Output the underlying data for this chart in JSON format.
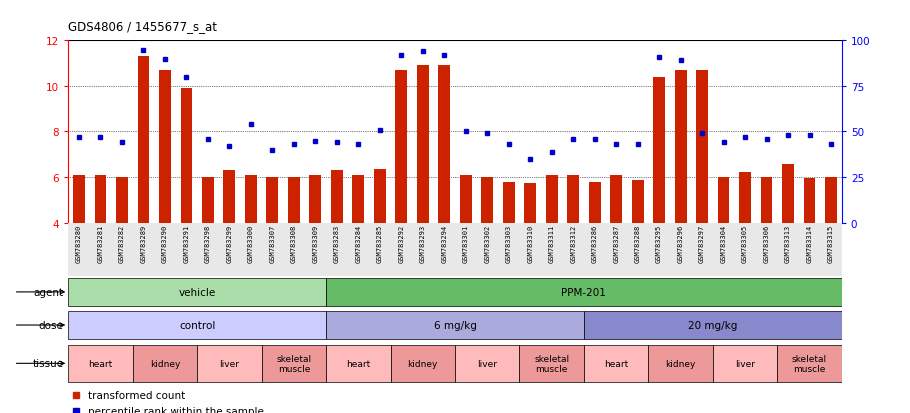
{
  "title": "GDS4806 / 1455677_s_at",
  "samples": [
    "GSM783280",
    "GSM783281",
    "GSM783282",
    "GSM783289",
    "GSM783290",
    "GSM783291",
    "GSM783298",
    "GSM783299",
    "GSM783300",
    "GSM783307",
    "GSM783308",
    "GSM783309",
    "GSM783283",
    "GSM783284",
    "GSM783285",
    "GSM783292",
    "GSM783293",
    "GSM783294",
    "GSM783301",
    "GSM783302",
    "GSM783303",
    "GSM783310",
    "GSM783311",
    "GSM783312",
    "GSM783286",
    "GSM783287",
    "GSM783288",
    "GSM783295",
    "GSM783296",
    "GSM783297",
    "GSM783304",
    "GSM783305",
    "GSM783306",
    "GSM783313",
    "GSM783314",
    "GSM783315"
  ],
  "bar_values": [
    6.1,
    6.1,
    6.0,
    11.3,
    10.7,
    9.9,
    6.0,
    6.3,
    6.1,
    6.0,
    6.0,
    6.1,
    6.3,
    6.1,
    6.35,
    10.7,
    10.9,
    10.9,
    6.1,
    6.0,
    5.8,
    5.75,
    6.1,
    6.1,
    5.8,
    6.1,
    5.85,
    10.4,
    10.7,
    10.7,
    6.0,
    6.2,
    6.0,
    6.55,
    5.95,
    6.0
  ],
  "dot_values_pct": [
    47,
    47,
    44,
    95,
    90,
    80,
    46,
    42,
    54,
    40,
    43,
    45,
    44,
    43,
    51,
    92,
    94,
    92,
    50,
    49,
    43,
    35,
    39,
    46,
    46,
    43,
    43,
    91,
    89,
    49,
    44,
    47,
    46,
    48,
    48,
    43
  ],
  "ylim_left": [
    4,
    12
  ],
  "yticks_left": [
    4,
    6,
    8,
    10,
    12
  ],
  "ylim_right": [
    0,
    100
  ],
  "yticks_right": [
    0,
    25,
    50,
    75,
    100
  ],
  "bar_color": "#cc2200",
  "dot_color": "#0000cc",
  "bar_bottom": 4,
  "agent_groups": [
    {
      "label": "vehicle",
      "start": 0,
      "end": 12,
      "color": "#aaddaa"
    },
    {
      "label": "PPM-201",
      "start": 12,
      "end": 36,
      "color": "#66bb66"
    }
  ],
  "dose_groups": [
    {
      "label": "control",
      "start": 0,
      "end": 12,
      "color": "#ccccff"
    },
    {
      "label": "6 mg/kg",
      "start": 12,
      "end": 24,
      "color": "#aaaadd"
    },
    {
      "label": "20 mg/kg",
      "start": 24,
      "end": 36,
      "color": "#8888cc"
    }
  ],
  "tissue_groups": [
    {
      "label": "heart",
      "start": 0,
      "end": 3,
      "color": "#ffbbbb"
    },
    {
      "label": "kidney",
      "start": 3,
      "end": 6,
      "color": "#ee9999"
    },
    {
      "label": "liver",
      "start": 6,
      "end": 9,
      "color": "#ffbbbb"
    },
    {
      "label": "skeletal\nmuscle",
      "start": 9,
      "end": 12,
      "color": "#ee9999"
    },
    {
      "label": "heart",
      "start": 12,
      "end": 15,
      "color": "#ffbbbb"
    },
    {
      "label": "kidney",
      "start": 15,
      "end": 18,
      "color": "#ee9999"
    },
    {
      "label": "liver",
      "start": 18,
      "end": 21,
      "color": "#ffbbbb"
    },
    {
      "label": "skeletal\nmuscle",
      "start": 21,
      "end": 24,
      "color": "#ee9999"
    },
    {
      "label": "heart",
      "start": 24,
      "end": 27,
      "color": "#ffbbbb"
    },
    {
      "label": "kidney",
      "start": 27,
      "end": 30,
      "color": "#ee9999"
    },
    {
      "label": "liver",
      "start": 30,
      "end": 33,
      "color": "#ffbbbb"
    },
    {
      "label": "skeletal\nmuscle",
      "start": 33,
      "end": 36,
      "color": "#ee9999"
    }
  ]
}
